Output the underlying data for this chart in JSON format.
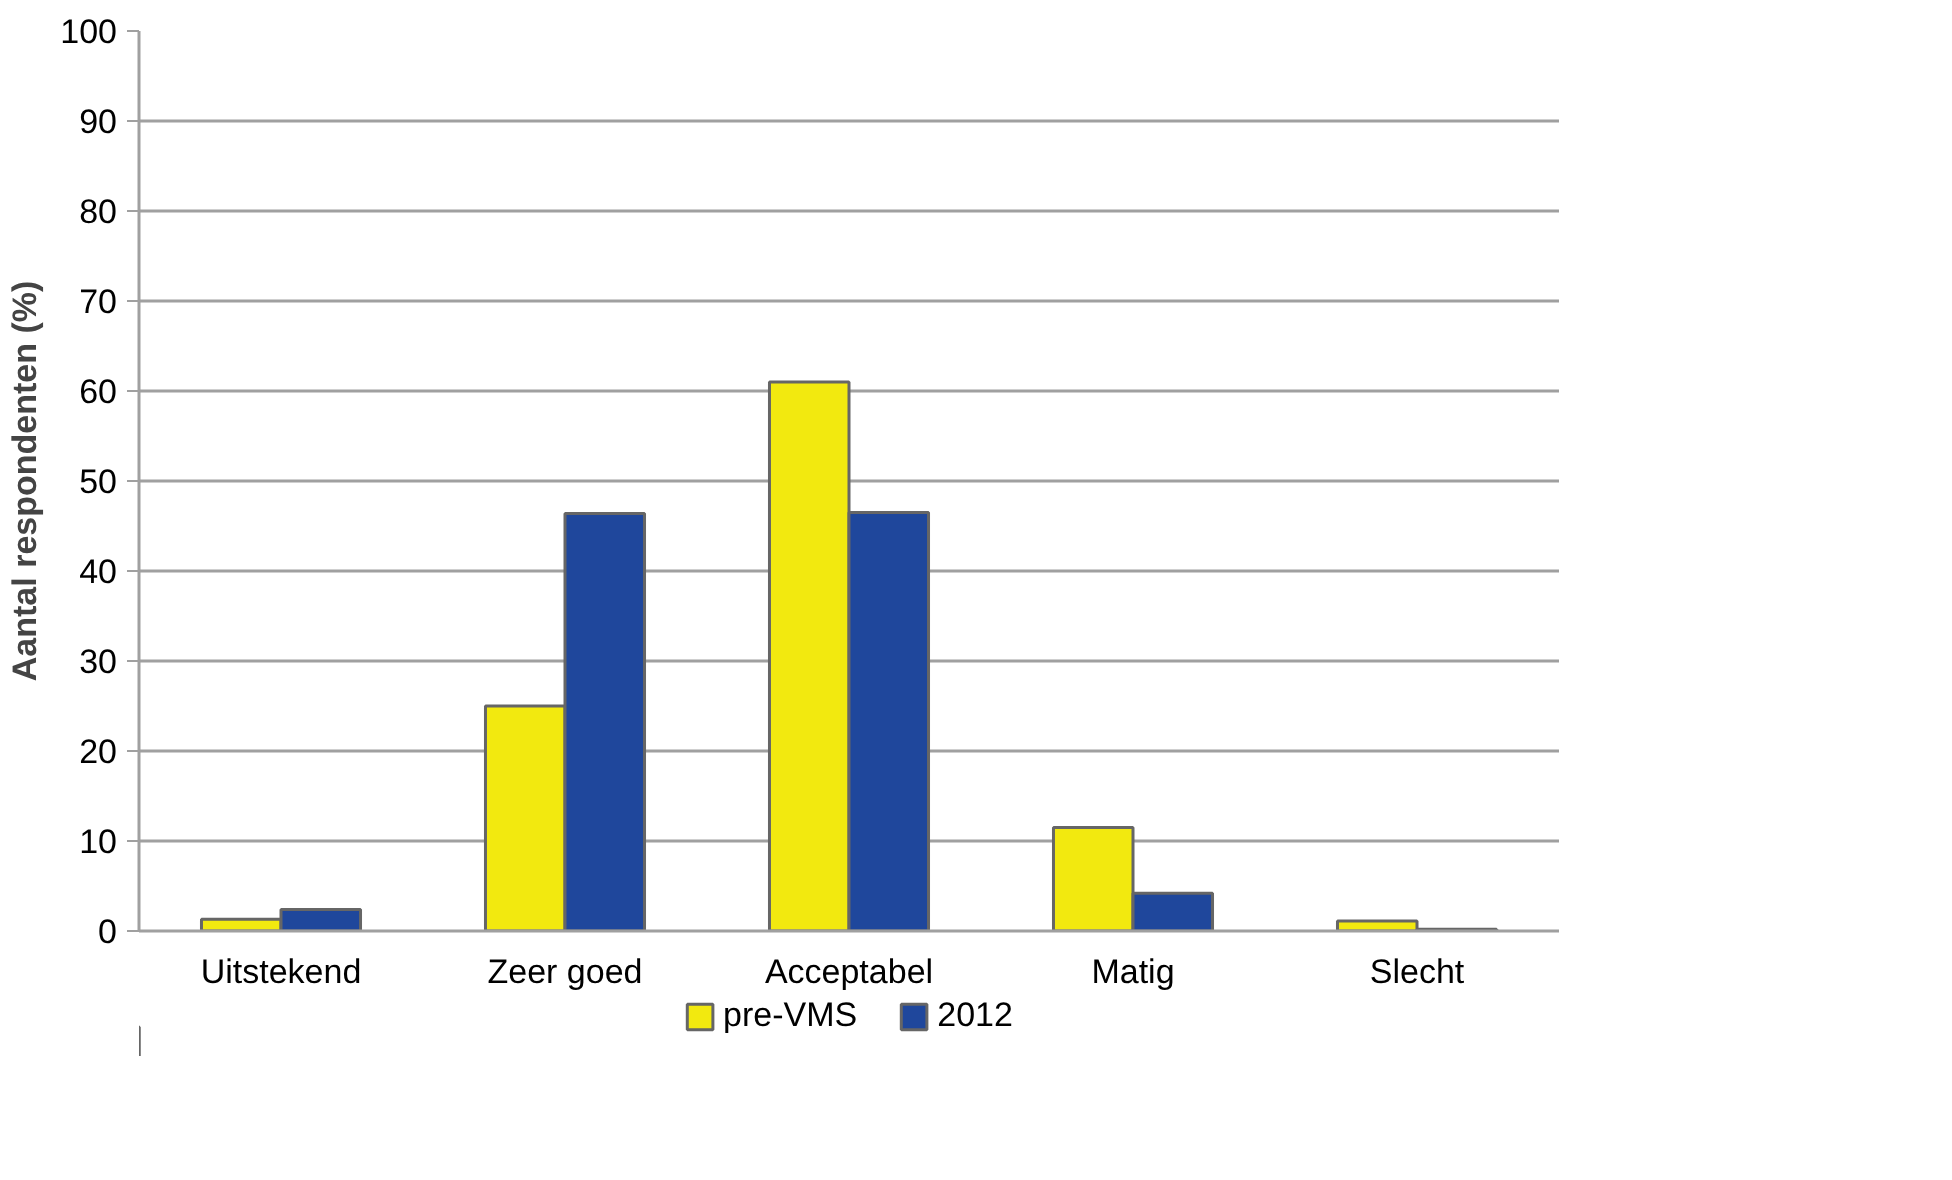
{
  "chart_data": {
    "type": "bar",
    "ylabel": "Aantal respondenten (%)",
    "categories": [
      "Uitstekend",
      "Zeer goed",
      "Acceptabel",
      "Matig",
      "Slecht"
    ],
    "series": [
      {
        "name": "pre-VMS",
        "color": "#f2e90f",
        "values": [
          1.3,
          25,
          61,
          11.5,
          1.1
        ]
      },
      {
        "name": "2012",
        "color": "#1f479c",
        "values": [
          2.4,
          46.4,
          46.5,
          4.2,
          0.2
        ]
      }
    ],
    "ylim": [
      0,
      100
    ],
    "yticks": [
      0,
      10,
      20,
      30,
      40,
      50,
      60,
      70,
      80,
      90,
      100
    ],
    "grid": "y",
    "legend": "bottom"
  }
}
